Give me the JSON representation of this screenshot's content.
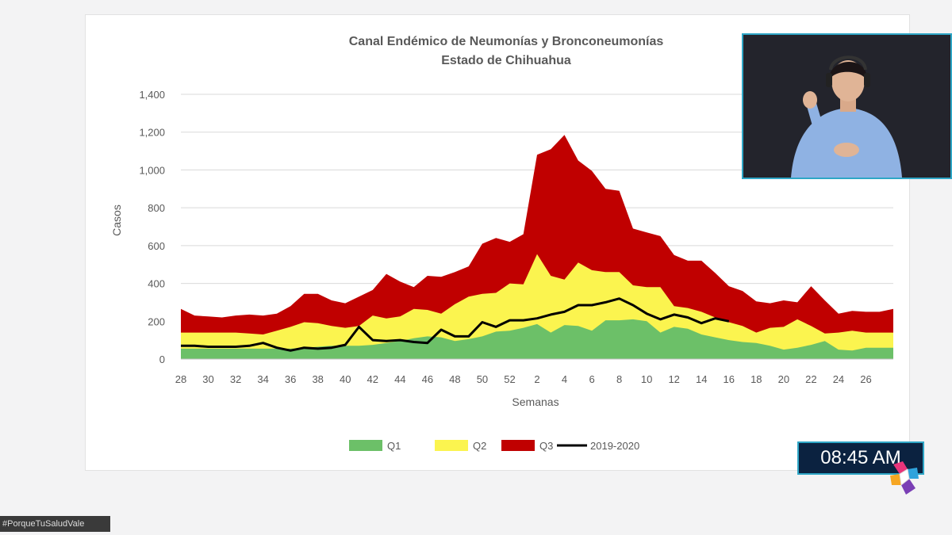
{
  "chart_data": {
    "type": "area",
    "title": [
      "Canal Endémico de Neumonías y Bronconeumonías",
      "Estado de Chihuahua"
    ],
    "xlabel": "Semanas",
    "ylabel": "Casos",
    "ylim": [
      0,
      1400
    ],
    "yticks": [
      0,
      200,
      400,
      600,
      800,
      1000,
      1200,
      1400
    ],
    "yticklabels": [
      "0",
      "200",
      "400",
      "600",
      "800",
      "1,000",
      "1,200",
      "1,400"
    ],
    "xticklabels": [
      "28",
      "30",
      "32",
      "34",
      "36",
      "38",
      "40",
      "42",
      "44",
      "46",
      "48",
      "50",
      "52",
      "2",
      "4",
      "6",
      "8",
      "10",
      "12",
      "14",
      "16",
      "18",
      "20",
      "22",
      "24",
      "26"
    ],
    "grid": true,
    "legend_position": "bottom",
    "series": [
      {
        "name": "Q1",
        "color": "#6cc068",
        "kind": "area",
        "values": [
          55,
          55,
          55,
          55,
          55,
          55,
          55,
          55,
          55,
          60,
          65,
          70,
          70,
          70,
          75,
          85,
          95,
          110,
          120,
          115,
          95,
          105,
          120,
          145,
          150,
          165,
          185,
          140,
          180,
          175,
          150,
          205,
          205,
          210,
          200,
          140,
          170,
          160,
          130,
          115,
          100,
          90,
          85,
          70,
          50,
          60,
          75,
          95,
          50,
          45,
          60,
          60,
          60
        ]
      },
      {
        "name": "Q2",
        "color": "#fbf44f",
        "kind": "area",
        "values": [
          140,
          140,
          140,
          140,
          140,
          135,
          130,
          150,
          170,
          195,
          190,
          175,
          165,
          175,
          230,
          215,
          225,
          265,
          260,
          240,
          290,
          330,
          345,
          350,
          400,
          395,
          555,
          440,
          420,
          510,
          470,
          460,
          460,
          390,
          380,
          380,
          280,
          270,
          250,
          220,
          195,
          175,
          140,
          165,
          170,
          210,
          175,
          135,
          140,
          150,
          140,
          140,
          140
        ]
      },
      {
        "name": "Q3",
        "color": "#c00000",
        "kind": "area",
        "values": [
          265,
          230,
          225,
          220,
          230,
          235,
          230,
          240,
          280,
          345,
          345,
          310,
          295,
          330,
          365,
          450,
          410,
          380,
          440,
          435,
          460,
          490,
          610,
          640,
          620,
          660,
          1080,
          1110,
          1185,
          1050,
          995,
          900,
          890,
          690,
          670,
          650,
          550,
          520,
          520,
          455,
          385,
          360,
          305,
          295,
          310,
          300,
          385,
          310,
          240,
          255,
          250,
          250,
          265
        ]
      },
      {
        "name": "2019-2020",
        "color": "#000000",
        "kind": "line",
        "values": [
          70,
          70,
          65,
          65,
          65,
          70,
          85,
          60,
          45,
          60,
          55,
          60,
          75,
          170,
          100,
          95,
          100,
          90,
          85,
          155,
          120,
          120,
          195,
          170,
          205,
          205,
          215,
          235,
          250,
          285,
          285,
          300,
          320,
          285,
          240,
          210,
          235,
          220,
          190,
          215,
          200
        ]
      }
    ]
  },
  "overlay": {
    "clock_text": "08:45 AM",
    "hashtag_text": "#PorqueTuSaludVale"
  }
}
